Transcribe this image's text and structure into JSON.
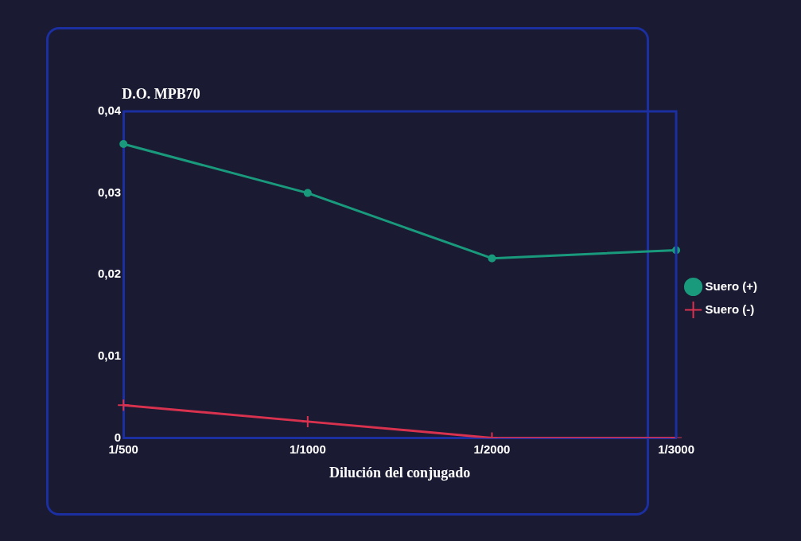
{
  "chart_data": {
    "type": "line",
    "ylabel": "D.O. MPB70",
    "xlabel": "Dilución del conjugado",
    "categories": [
      "1/500",
      "1/1000",
      "1/2000",
      "1/3000"
    ],
    "series": [
      {
        "name": "Suero (+)",
        "color": "#1a9a7c",
        "marker": "circle",
        "values": [
          0.036,
          0.03,
          0.022,
          0.023
        ]
      },
      {
        "name": "Suero (-)",
        "color": "#d8324e",
        "marker": "cross",
        "values": [
          0.004,
          0.002,
          0,
          0
        ]
      }
    ],
    "ylim": [
      0,
      0.04
    ],
    "yticks": [
      {
        "value": 0,
        "label": "0"
      },
      {
        "value": 0.01,
        "label": "0,01"
      },
      {
        "value": 0.02,
        "label": "0,02"
      },
      {
        "value": 0.03,
        "label": "0,03"
      },
      {
        "value": 0.04,
        "label": "0,04"
      }
    ],
    "grid": false,
    "legend": "right",
    "line_style": "solid"
  }
}
